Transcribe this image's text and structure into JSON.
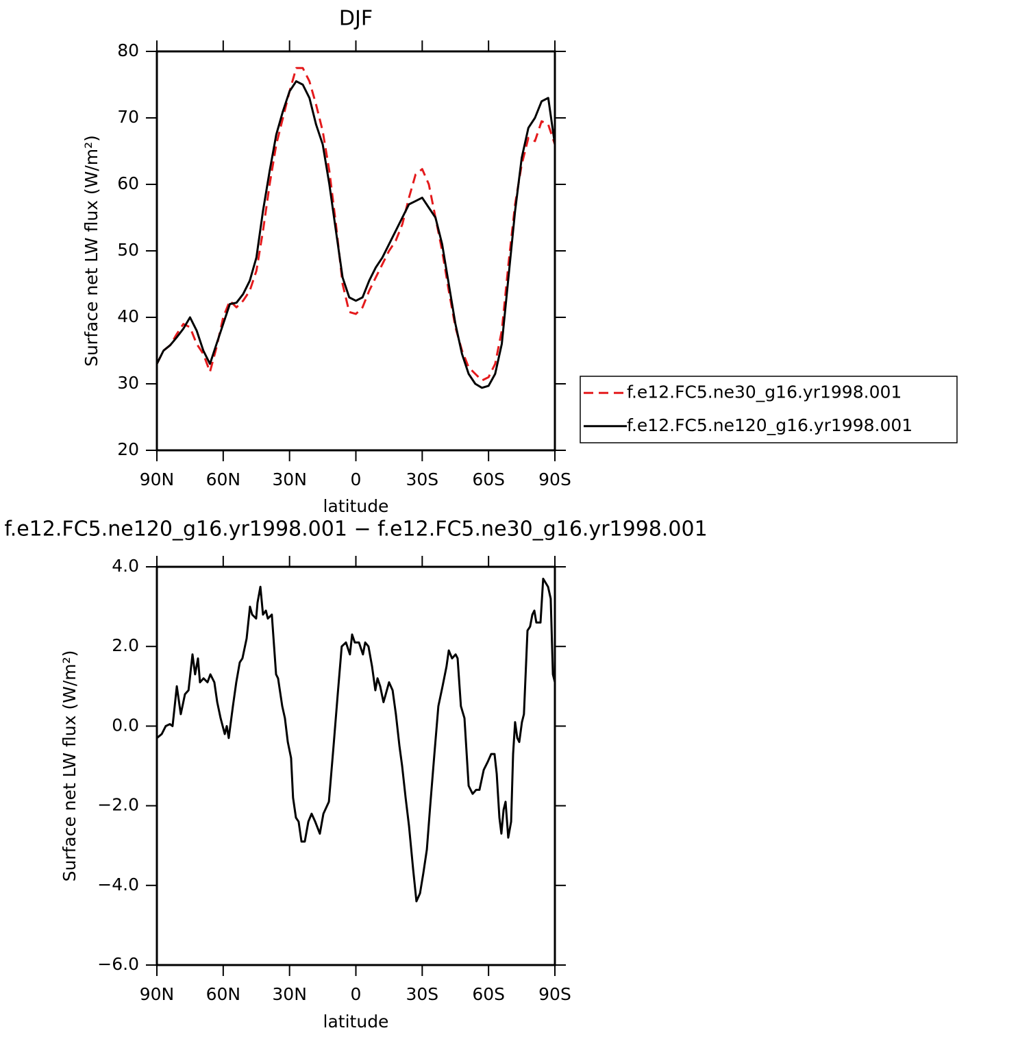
{
  "chart_data": [
    {
      "type": "line",
      "title": "DJF",
      "xlabel": "latitude",
      "ylabel": "Surface net LW flux (W/m²)",
      "x": [
        90,
        87,
        84,
        81,
        78,
        75,
        72,
        69,
        66,
        63,
        60,
        57,
        54,
        51,
        48,
        45,
        42,
        39,
        36,
        33,
        30,
        27,
        24,
        21,
        18,
        15,
        12,
        9,
        6,
        3,
        0,
        -3,
        -6,
        -9,
        -12,
        -15,
        -18,
        -21,
        -24,
        -27,
        -30,
        -33,
        -36,
        -39,
        -42,
        -45,
        -48,
        -51,
        -54,
        -57,
        -60,
        -63,
        -66,
        -69,
        -72,
        -75,
        -78,
        -81,
        -84,
        -87,
        -90
      ],
      "series": [
        {
          "name": "f.e12.FC5.ne30_g16.yr1998.001",
          "color": "#e41a1c",
          "linestyle": "dashed",
          "values": [
            33.0,
            35.0,
            35.8,
            37.5,
            39.0,
            38.5,
            36.0,
            34.5,
            31.8,
            35.5,
            40.0,
            42.5,
            41.5,
            42.5,
            44.0,
            47.0,
            53.0,
            60.0,
            66.0,
            70.0,
            74.0,
            77.5,
            77.5,
            75.5,
            72.0,
            68.0,
            62.0,
            54.0,
            45.0,
            40.8,
            40.5,
            41.5,
            44.0,
            46.0,
            48.0,
            50.0,
            51.5,
            54.0,
            58.0,
            61.5,
            62.3,
            60.0,
            55.0,
            50.0,
            44.0,
            38.5,
            35.0,
            32.5,
            31.5,
            30.5,
            31.0,
            33.0,
            38.0,
            48.0,
            57.0,
            63.0,
            67.0,
            66.5,
            69.5,
            69.0,
            66.0
          ]
        },
        {
          "name": "f.e12.FC5.ne120_g16.yr1998.001",
          "color": "#000000",
          "linestyle": "solid",
          "values": [
            33.0,
            35.0,
            35.8,
            37.0,
            38.3,
            40.0,
            38.0,
            35.0,
            33.0,
            36.0,
            39.0,
            42.0,
            42.2,
            43.5,
            45.5,
            49.0,
            56.0,
            62.0,
            67.5,
            71.0,
            74.0,
            75.5,
            75.0,
            73.0,
            69.0,
            66.0,
            60.0,
            53.0,
            46.0,
            43.0,
            42.5,
            43.0,
            45.5,
            47.5,
            49.0,
            51.0,
            53.0,
            55.0,
            57.0,
            57.5,
            58.0,
            56.5,
            55.0,
            51.0,
            45.0,
            39.0,
            34.5,
            31.5,
            30.0,
            29.4,
            29.7,
            31.5,
            36.0,
            46.0,
            56.0,
            64.0,
            68.5,
            70.0,
            72.5,
            73.0,
            66.0
          ]
        }
      ],
      "xlim": [
        90,
        -90
      ],
      "xticks": [
        {
          "value": 90,
          "label": "90N"
        },
        {
          "value": 60,
          "label": "60N"
        },
        {
          "value": 30,
          "label": "30N"
        },
        0,
        {
          "value": -30,
          "label": "30S"
        },
        {
          "value": -60,
          "label": "60S"
        },
        {
          "value": -90,
          "label": "90S"
        }
      ],
      "ylim": [
        20,
        80
      ],
      "yticks": [
        20,
        30,
        40,
        50,
        60,
        70,
        80
      ],
      "legend": "right"
    },
    {
      "type": "line",
      "title": "f.e12.FC5.ne120_g16.yr1998.001 − f.e12.FC5.ne30_g16.yr1998.001",
      "xlabel": "latitude",
      "ylabel": "Surface net LW flux (W/m²)",
      "x": [
        90,
        87.8,
        86.0,
        84.1,
        82.9,
        81.0,
        79.2,
        77.3,
        75.7,
        73.9,
        72.7,
        71.4,
        70.5,
        68.9,
        67.1,
        65.8,
        64.0,
        62.7,
        61.2,
        59.3,
        58.4,
        57.5,
        55.6,
        54.1,
        52.5,
        51.3,
        49.4,
        47.9,
        46.9,
        45.1,
        44.5,
        43.2,
        42.0,
        40.7,
        39.8,
        38.0,
        36.1,
        35.2,
        33.3,
        32.1,
        30.8,
        29.3,
        28.4,
        27.1,
        25.9,
        24.6,
        23.1,
        21.5,
        20.0,
        18.4,
        16.3,
        14.7,
        12.2,
        10.1,
        8.2,
        6.4,
        4.5,
        2.7,
        1.7,
        0.5,
        -1.4,
        -3.2,
        -4.2,
        -5.7,
        -7.3,
        -8.8,
        -9.8,
        -11.0,
        -12.5,
        -13.5,
        -15.0,
        -16.6,
        -18.1,
        -19.7,
        -20.9,
        -22.5,
        -24.0,
        -25.9,
        -27.4,
        -29.0,
        -30.5,
        -32.1,
        -33.6,
        -35.5,
        -37.3,
        -39.2,
        -41.0,
        -42.0,
        -43.5,
        -45.1,
        -46.0,
        -47.5,
        -49.1,
        -51.0,
        -52.8,
        -54.4,
        -55.9,
        -57.8,
        -59.6,
        -61.2,
        -62.7,
        -63.7,
        -64.9,
        -65.8,
        -66.8,
        -67.7,
        -68.9,
        -70.2,
        -71.1,
        -72.0,
        -73.0,
        -73.9,
        -75.1,
        -76.0,
        -77.6,
        -78.8,
        -79.8,
        -80.7,
        -81.6,
        -83.5,
        -84.7,
        -86.9,
        -88.1,
        -89.1,
        -90
      ],
      "values": [
        -0.3,
        -0.2,
        0.0,
        0.05,
        0.0,
        1.0,
        0.3,
        0.8,
        0.9,
        1.8,
        1.3,
        1.7,
        1.1,
        1.2,
        1.1,
        1.3,
        1.1,
        0.6,
        0.2,
        -0.2,
        0.0,
        -0.3,
        0.5,
        1.1,
        1.6,
        1.7,
        2.2,
        3.0,
        2.8,
        2.7,
        3.1,
        3.5,
        2.8,
        2.9,
        2.7,
        2.8,
        1.3,
        1.2,
        0.5,
        0.2,
        -0.4,
        -0.8,
        -1.8,
        -2.3,
        -2.4,
        -2.9,
        -2.9,
        -2.4,
        -2.2,
        -2.4,
        -2.7,
        -2.2,
        -1.9,
        -0.5,
        0.8,
        2.0,
        2.1,
        1.8,
        2.3,
        2.1,
        2.1,
        1.8,
        2.1,
        2.0,
        1.5,
        0.9,
        1.2,
        1.0,
        0.6,
        0.8,
        1.1,
        0.9,
        0.3,
        -0.5,
        -1.0,
        -1.8,
        -2.5,
        -3.6,
        -4.4,
        -4.2,
        -3.7,
        -3.1,
        -2.0,
        -0.7,
        0.5,
        1.0,
        1.5,
        1.9,
        1.7,
        1.8,
        1.7,
        0.5,
        0.2,
        -1.5,
        -1.7,
        -1.6,
        -1.6,
        -1.1,
        -0.9,
        -0.7,
        -0.7,
        -1.2,
        -2.3,
        -2.7,
        -2.1,
        -1.9,
        -2.8,
        -2.4,
        -0.7,
        0.1,
        -0.3,
        -0.4,
        0.1,
        0.3,
        2.4,
        2.5,
        2.8,
        2.9,
        2.6,
        2.6,
        3.7,
        3.5,
        3.2,
        1.3,
        1.1
      ],
      "color": "#000000",
      "xlim": [
        90,
        -90
      ],
      "xticks": [
        {
          "value": 90,
          "label": "90N"
        },
        {
          "value": 60,
          "label": "60N"
        },
        {
          "value": 30,
          "label": "30N"
        },
        0,
        {
          "value": -30,
          "label": "30S"
        },
        {
          "value": -60,
          "label": "60S"
        },
        {
          "value": -90,
          "label": "90S"
        }
      ],
      "ylim": [
        -6,
        4
      ],
      "yticks": [
        {
          "value": -6,
          "label": "−6.0"
        },
        {
          "value": -4,
          "label": "−4.0"
        },
        {
          "value": -2,
          "label": "−2.0"
        },
        {
          "value": 0,
          "label": "0.0"
        },
        {
          "value": 2,
          "label": "2.0"
        },
        {
          "value": 4,
          "label": "4.0"
        }
      ]
    }
  ]
}
